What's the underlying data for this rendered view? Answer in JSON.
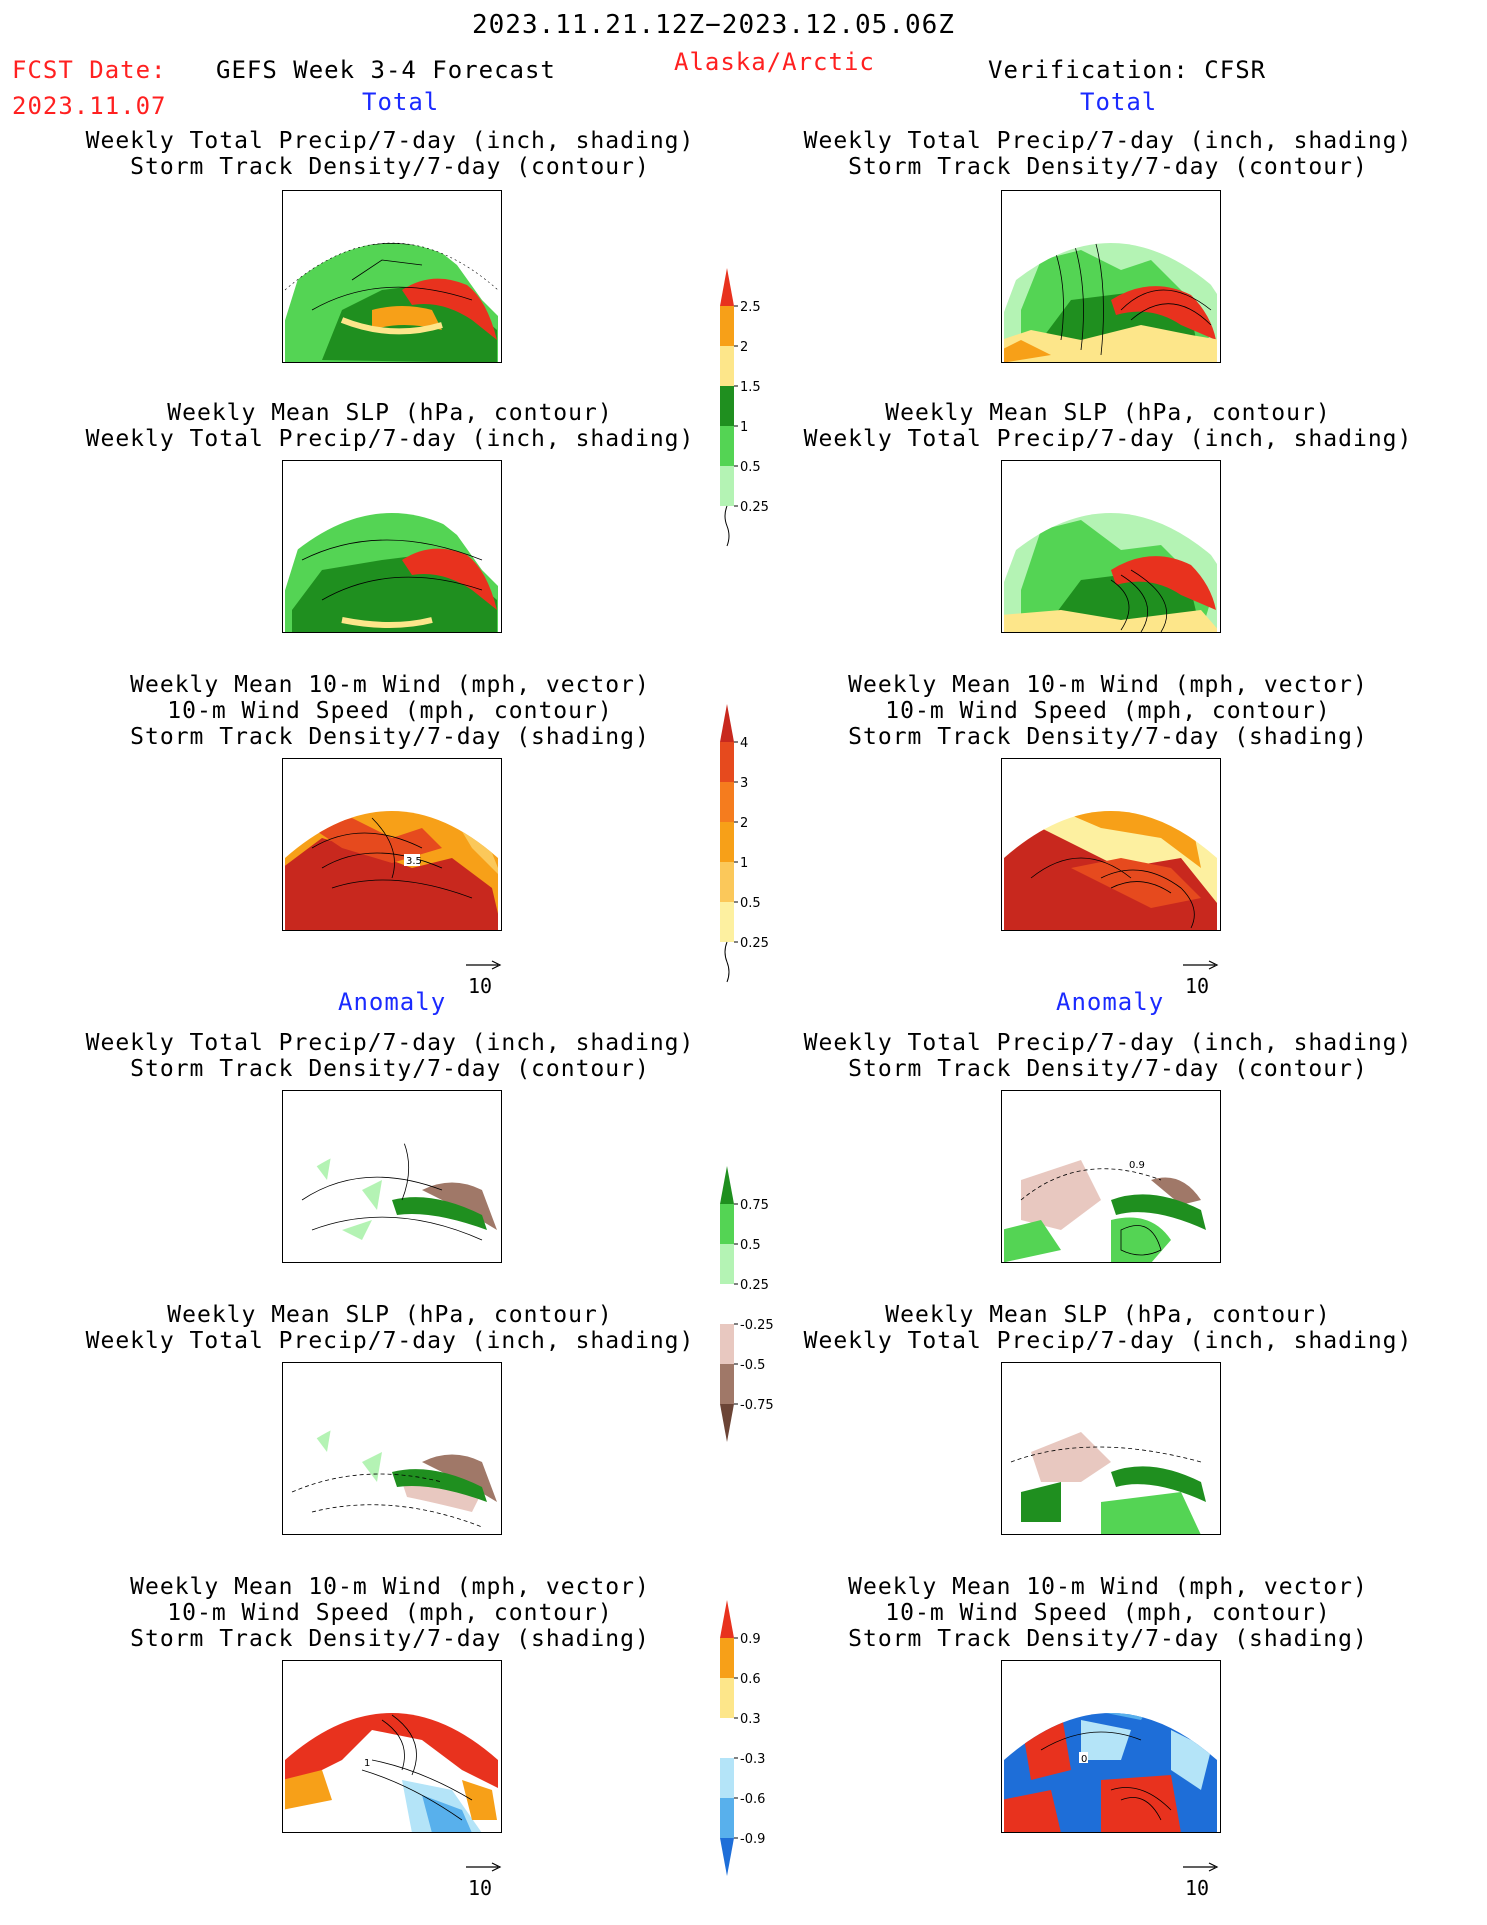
{
  "header": {
    "date_range": "2023.11.21.12Z−2023.12.05.06Z",
    "fcst_date_label": "FCST Date:",
    "fcst_date_value": "2023.11.07",
    "forecast_name": "GEFS Week 3-4 Forecast",
    "region": "Alaska/Arctic",
    "verification": "Verification: CFSR"
  },
  "sections": {
    "total": "Total",
    "anomaly": "Anomaly"
  },
  "titles": {
    "p1": [
      "Weekly Total Precip/7-day (inch, shading)",
      "Storm Track Density/7-day (contour)"
    ],
    "p2": [
      "Weekly Mean SLP (hPa, contour)",
      "Weekly Total Precip/7-day (inch, shading)"
    ],
    "p3": [
      "Weekly Mean 10-m Wind (mph, vector)",
      "10-m Wind Speed (mph, contour)",
      "Storm Track Density/7-day (shading)"
    ]
  },
  "reference_vector": "10",
  "panel_labels": {
    "left_wind_total": "3.5",
    "right_anom_precip": "0.9",
    "left_wind_anom": "1",
    "right_wind_anom": "0"
  },
  "colorbars": {
    "precip_total": {
      "labels": [
        "2.5",
        "2",
        "1.5",
        "1",
        "0.5",
        "0.25"
      ],
      "colors": [
        "#e8321e",
        "#f7a018",
        "#fde68a",
        "#1f8f1f",
        "#54d454",
        "#b4f3b4"
      ]
    },
    "storm_total": {
      "labels": [
        "4",
        "3",
        "2",
        "1",
        "0.5",
        "0.25"
      ],
      "colors": [
        "#c8281e",
        "#e64a1e",
        "#f57c1e",
        "#f7a018",
        "#fbc85a",
        "#fdf0a0"
      ]
    },
    "precip_anom": {
      "labels": [
        "0.75",
        "0.5",
        "0.25",
        "-0.25",
        "-0.5",
        "-0.75"
      ],
      "colors": [
        "#1f8f1f",
        "#54d454",
        "#b4f3b4",
        "#ffffff",
        "#e8c8c0",
        "#a07868",
        "#6b4436"
      ]
    },
    "wind_anom": {
      "labels": [
        "0.9",
        "0.6",
        "0.3",
        "-0.3",
        "-0.6",
        "-0.9"
      ],
      "colors": [
        "#e8321e",
        "#f7a018",
        "#fde68a",
        "#ffffff",
        "#b4e4f8",
        "#58b0ec",
        "#1e6ed8"
      ]
    }
  },
  "colors": {
    "forecast_red": "#ff2020",
    "section_blue": "#1a2aff"
  }
}
